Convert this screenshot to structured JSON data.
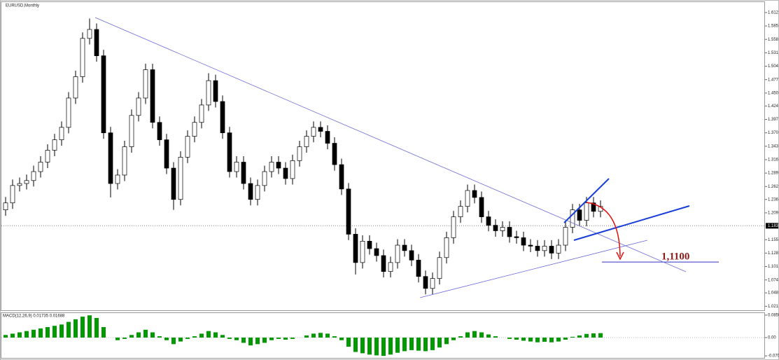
{
  "chart_data": [
    {
      "type": "candlestick",
      "title": "EURUSD,Monthly",
      "open": [
        1.215,
        1.229,
        1.264,
        1.268,
        1.274,
        1.292,
        1.311,
        1.335,
        1.356,
        1.381,
        1.44,
        1.483,
        1.56,
        1.578,
        1.525,
        1.37,
        1.268,
        1.285,
        1.342,
        1.405,
        1.44,
        1.497,
        1.391,
        1.356,
        1.299,
        1.236,
        1.321,
        1.363,
        1.391,
        1.426,
        1.475,
        1.433,
        1.37,
        1.292,
        1.311,
        1.268,
        1.236,
        1.264,
        1.292,
        1.311,
        1.299,
        1.278,
        1.314,
        1.342,
        1.363,
        1.381,
        1.373,
        1.349,
        1.306,
        1.257,
        1.166,
        1.109,
        1.152,
        1.137,
        1.123,
        1.091,
        1.109,
        1.144,
        1.133,
        1.114,
        1.081,
        1.057,
        1.077,
        1.119,
        1.159,
        1.201,
        1.222,
        1.254,
        1.24,
        1.201,
        1.184,
        1.173,
        1.18,
        1.161,
        1.159,
        1.144,
        1.142,
        1.133,
        1.142,
        1.128,
        1.144,
        1.18,
        1.215,
        1.194,
        1.229,
        1.212
      ],
      "high": [
        1.241,
        1.276,
        1.28,
        1.286,
        1.304,
        1.323,
        1.347,
        1.368,
        1.393,
        1.452,
        1.495,
        1.572,
        1.6,
        1.59,
        1.537,
        1.382,
        1.297,
        1.354,
        1.417,
        1.452,
        1.509,
        1.509,
        1.403,
        1.368,
        1.311,
        1.333,
        1.375,
        1.403,
        1.438,
        1.49,
        1.487,
        1.445,
        1.382,
        1.323,
        1.323,
        1.28,
        1.276,
        1.304,
        1.323,
        1.323,
        1.311,
        1.326,
        1.354,
        1.375,
        1.393,
        1.393,
        1.385,
        1.361,
        1.318,
        1.269,
        1.178,
        1.164,
        1.164,
        1.149,
        1.135,
        1.121,
        1.156,
        1.156,
        1.145,
        1.126,
        1.093,
        1.089,
        1.131,
        1.171,
        1.213,
        1.234,
        1.266,
        1.266,
        1.252,
        1.213,
        1.196,
        1.192,
        1.192,
        1.173,
        1.171,
        1.156,
        1.154,
        1.154,
        1.154,
        1.156,
        1.192,
        1.227,
        1.227,
        1.241,
        1.241,
        1.234
      ],
      "low": [
        1.203,
        1.217,
        1.252,
        1.256,
        1.262,
        1.28,
        1.299,
        1.323,
        1.344,
        1.369,
        1.428,
        1.471,
        1.548,
        1.513,
        1.358,
        1.24,
        1.256,
        1.273,
        1.33,
        1.393,
        1.428,
        1.379,
        1.344,
        1.287,
        1.215,
        1.224,
        1.309,
        1.351,
        1.379,
        1.414,
        1.421,
        1.358,
        1.28,
        1.28,
        1.256,
        1.224,
        1.224,
        1.252,
        1.28,
        1.287,
        1.266,
        1.266,
        1.302,
        1.33,
        1.351,
        1.361,
        1.337,
        1.294,
        1.245,
        1.154,
        1.085,
        1.097,
        1.125,
        1.111,
        1.079,
        1.079,
        1.097,
        1.121,
        1.102,
        1.069,
        1.045,
        1.045,
        1.065,
        1.107,
        1.147,
        1.189,
        1.21,
        1.228,
        1.189,
        1.172,
        1.161,
        1.161,
        1.149,
        1.147,
        1.132,
        1.13,
        1.121,
        1.121,
        1.116,
        1.116,
        1.132,
        1.168,
        1.182,
        1.182,
        1.2,
        1.2
      ],
      "close": [
        1.229,
        1.264,
        1.268,
        1.274,
        1.292,
        1.311,
        1.335,
        1.356,
        1.381,
        1.44,
        1.483,
        1.56,
        1.578,
        1.525,
        1.37,
        1.268,
        1.285,
        1.342,
        1.405,
        1.44,
        1.497,
        1.391,
        1.356,
        1.299,
        1.236,
        1.321,
        1.363,
        1.391,
        1.426,
        1.475,
        1.433,
        1.37,
        1.292,
        1.311,
        1.268,
        1.236,
        1.264,
        1.292,
        1.311,
        1.299,
        1.278,
        1.314,
        1.342,
        1.363,
        1.381,
        1.373,
        1.349,
        1.306,
        1.257,
        1.166,
        1.109,
        1.152,
        1.137,
        1.123,
        1.091,
        1.109,
        1.144,
        1.133,
        1.114,
        1.081,
        1.057,
        1.077,
        1.119,
        1.159,
        1.201,
        1.222,
        1.254,
        1.24,
        1.201,
        1.184,
        1.173,
        1.18,
        1.161,
        1.159,
        1.144,
        1.142,
        1.133,
        1.142,
        1.128,
        1.144,
        1.18,
        1.215,
        1.194,
        1.229,
        1.212,
        1.222
      ],
      "up_color": "#ffffff",
      "down_color": "#000000",
      "ylim": [
        1.013,
        1.633
      ],
      "yticks": [
        1.612,
        1.585,
        1.558,
        1.531,
        1.504,
        1.477,
        {
          "value": 1.45,
          "label": "1.450"
        },
        1.424,
        1.397,
        {
          "value": 1.37,
          "label": "1.370"
        },
        1.343,
        1.316,
        1.289,
        1.262,
        1.236,
        1.209,
        1.155,
        1.128,
        1.101,
        1.074,
        1.048,
        1.021
      ],
      "current_price": 1.183,
      "level": {
        "value": 1.11,
        "label": "1,1100"
      }
    },
    {
      "type": "bar",
      "title": "MACD(12,26,9) 0.01735 0.01688",
      "color": "#009900",
      "values": [
        0.01,
        0.015,
        0.02,
        0.025,
        0.03,
        0.035,
        0.04,
        0.045,
        0.05,
        0.06,
        0.07,
        0.08,
        0.085,
        0.075,
        0.04,
        0.0,
        -0.01,
        -0.005,
        0.01,
        0.02,
        0.03,
        0.02,
        0.005,
        -0.01,
        -0.025,
        -0.015,
        -0.005,
        0.005,
        0.015,
        0.025,
        0.02,
        0.01,
        -0.005,
        -0.01,
        -0.02,
        -0.03,
        -0.025,
        -0.02,
        -0.01,
        -0.005,
        -0.008,
        -0.005,
        0.0,
        0.008,
        0.015,
        0.018,
        0.015,
        0.005,
        -0.01,
        -0.035,
        -0.055,
        -0.06,
        -0.065,
        -0.068,
        -0.07,
        -0.065,
        -0.058,
        -0.052,
        -0.048,
        -0.05,
        -0.052,
        -0.048,
        -0.038,
        -0.025,
        -0.01,
        0.005,
        0.02,
        0.025,
        0.02,
        0.012,
        0.005,
        0.0,
        -0.005,
        -0.008,
        -0.012,
        -0.015,
        -0.018,
        -0.016,
        -0.018,
        -0.015,
        -0.008,
        0.003,
        0.008,
        0.014,
        0.016,
        0.017
      ],
      "ylim": [
        -0.075,
        0.091
      ],
      "yticks": [
        0.0859,
        {
          "value": 0,
          "label": "0.00"
        },
        {
          "value": -0.07,
          "label": "-0.0700"
        }
      ]
    }
  ]
}
